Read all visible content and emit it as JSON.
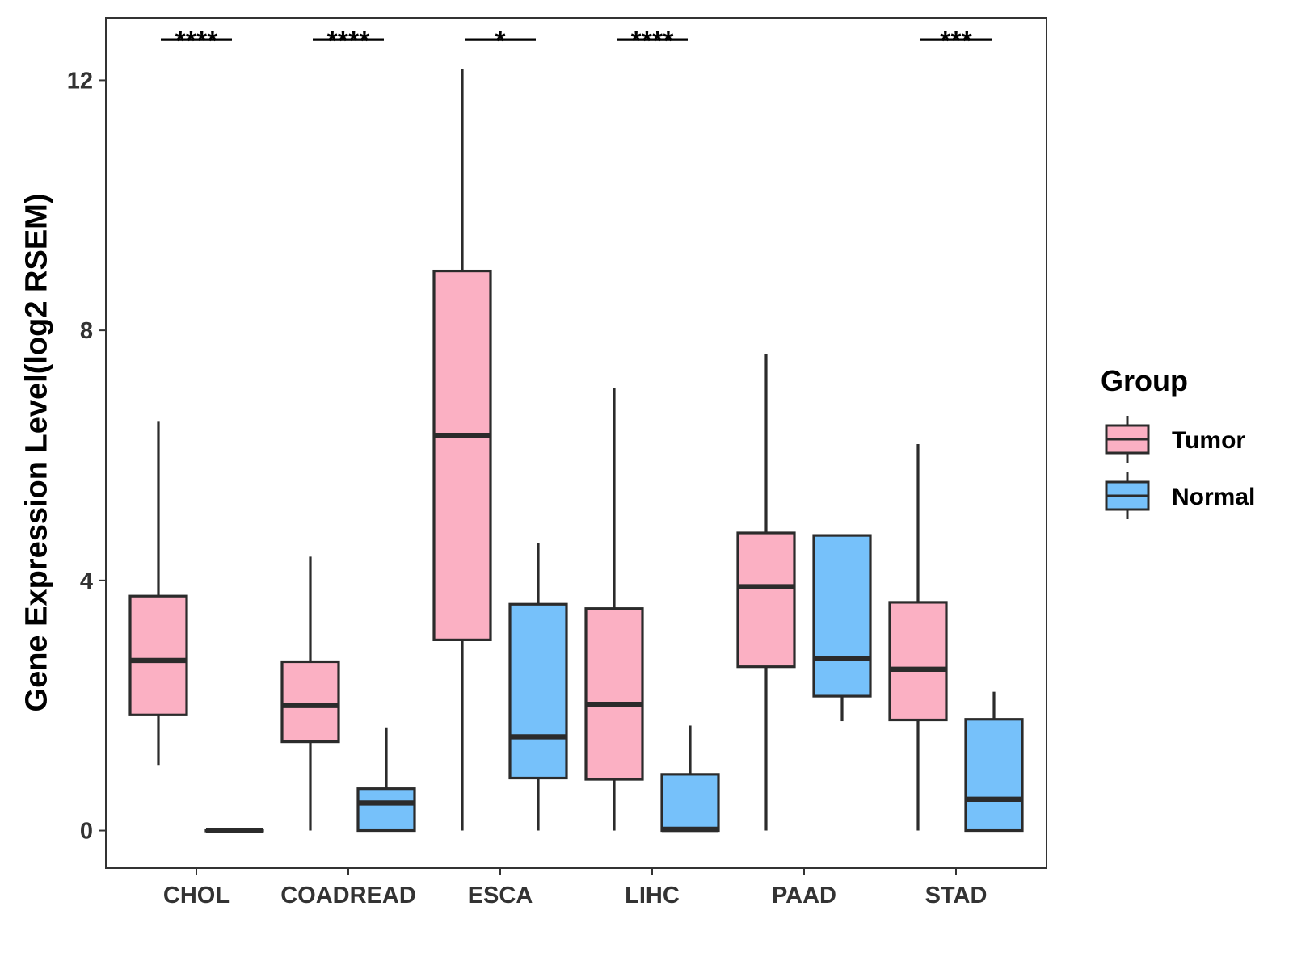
{
  "chart_data": {
    "type": "boxplot",
    "title": "",
    "xlabel": "",
    "ylabel": "Gene Expression Level(log2 RSEM)",
    "ylim": [
      -0.6,
      13.0
    ],
    "yticks": [
      0,
      4,
      8,
      12
    ],
    "grid": false,
    "legend_position": "right",
    "legend_title": "Group",
    "categories": [
      "CHOL",
      "COADREAD",
      "ESCA",
      "LIHC",
      "PAAD",
      "STAD"
    ],
    "series": [
      {
        "name": "Tumor",
        "color": "#FBB0C3",
        "boxes": [
          {
            "min": 1.05,
            "q1": 1.85,
            "median": 2.72,
            "q3": 3.75,
            "max": 6.55
          },
          {
            "min": 0.0,
            "q1": 1.42,
            "median": 2.0,
            "q3": 2.7,
            "max": 4.38
          },
          {
            "min": 0.0,
            "q1": 3.05,
            "median": 6.32,
            "q3": 8.95,
            "max": 12.18
          },
          {
            "min": 0.0,
            "q1": 0.82,
            "median": 2.02,
            "q3": 3.55,
            "max": 7.08
          },
          {
            "min": 0.0,
            "q1": 2.62,
            "median": 3.9,
            "q3": 4.76,
            "max": 7.62
          },
          {
            "min": 0.0,
            "q1": 1.77,
            "median": 2.58,
            "q3": 3.65,
            "max": 6.18
          }
        ]
      },
      {
        "name": "Normal",
        "color": "#76C1FA",
        "boxes": [
          {
            "min": 0.0,
            "q1": 0.0,
            "median": 0.0,
            "q3": 0.0,
            "max": 0.0
          },
          {
            "min": 0.0,
            "q1": 0.0,
            "median": 0.44,
            "q3": 0.67,
            "max": 1.65
          },
          {
            "min": 0.0,
            "q1": 0.84,
            "median": 1.5,
            "q3": 3.62,
            "max": 4.6
          },
          {
            "min": 0.0,
            "q1": 0.0,
            "median": 0.02,
            "q3": 0.9,
            "max": 1.68
          },
          {
            "min": 1.75,
            "q1": 2.15,
            "median": 2.75,
            "q3": 4.72,
            "max": 4.72
          },
          {
            "min": 0.0,
            "q1": 0.0,
            "median": 0.5,
            "q3": 1.78,
            "max": 2.22
          }
        ]
      }
    ],
    "annotations": [
      {
        "category": "CHOL",
        "label": "****",
        "y": 12.65
      },
      {
        "category": "COADREAD",
        "label": "****",
        "y": 12.65
      },
      {
        "category": "ESCA",
        "label": "*",
        "y": 12.65
      },
      {
        "category": "LIHC",
        "label": "****",
        "y": 12.65
      },
      {
        "category": "PAAD",
        "label": "",
        "y": 12.65
      },
      {
        "category": "STAD",
        "label": "***",
        "y": 12.65
      }
    ]
  }
}
